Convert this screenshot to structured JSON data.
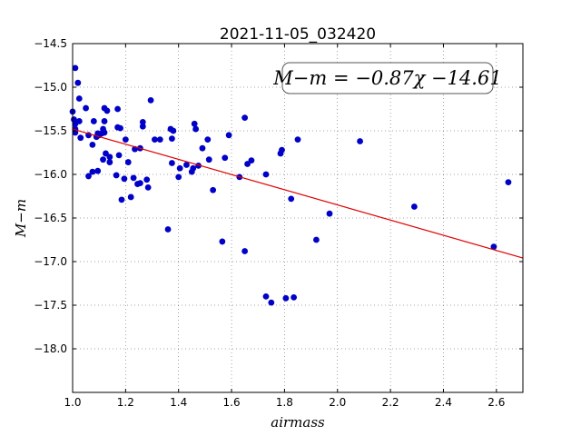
{
  "chart_data": {
    "type": "scatter",
    "title": "2021-11-05_032420",
    "xlabel": "airmass",
    "ylabel": "M−m",
    "xlim": [
      1.0,
      2.7
    ],
    "ylim": [
      -14.5,
      -18.5
    ],
    "y_inverted": true,
    "grid": true,
    "x_ticks": [
      1.0,
      1.2,
      1.4,
      1.6,
      1.8,
      2.0,
      2.2,
      2.4,
      2.6
    ],
    "x_tick_labels": [
      "1.0",
      "1.2",
      "1.4",
      "1.6",
      "1.8",
      "2.0",
      "2.2",
      "2.4",
      "2.6"
    ],
    "y_ticks": [
      -14.5,
      -15.0,
      -15.5,
      -16.0,
      -16.5,
      -17.0,
      -17.5,
      -18.0
    ],
    "y_tick_labels": [
      "−14.5",
      "−15.0",
      "−15.5",
      "−16.0",
      "−16.5",
      "−17.0",
      "−17.5",
      "−18.0"
    ],
    "annotation": "M−m = −0.87χ −14.61",
    "fit": {
      "slope": -0.87,
      "intercept": -14.61,
      "color": "#e00000"
    },
    "marker_color": "#0000c8",
    "points": [
      [
        1.0,
        -15.28
      ],
      [
        1.005,
        -15.37
      ],
      [
        1.01,
        -15.42
      ],
      [
        1.01,
        -15.48
      ],
      [
        1.01,
        -15.52
      ],
      [
        1.01,
        -14.78
      ],
      [
        1.02,
        -14.95
      ],
      [
        1.025,
        -15.13
      ],
      [
        1.025,
        -15.39
      ],
      [
        1.03,
        -15.58
      ],
      [
        1.05,
        -15.24
      ],
      [
        1.06,
        -15.55
      ],
      [
        1.06,
        -16.02
      ],
      [
        1.075,
        -15.66
      ],
      [
        1.075,
        -15.97
      ],
      [
        1.08,
        -15.39
      ],
      [
        1.09,
        -15.57
      ],
      [
        1.095,
        -15.53
      ],
      [
        1.095,
        -15.96
      ],
      [
        1.1,
        -15.55
      ],
      [
        1.11,
        -15.53
      ],
      [
        1.115,
        -15.83
      ],
      [
        1.115,
        -15.48
      ],
      [
        1.12,
        -15.24
      ],
      [
        1.12,
        -15.39
      ],
      [
        1.12,
        -15.52
      ],
      [
        1.125,
        -15.76
      ],
      [
        1.13,
        -15.27
      ],
      [
        1.14,
        -15.8
      ],
      [
        1.14,
        -15.86
      ],
      [
        1.165,
        -16.01
      ],
      [
        1.17,
        -15.25
      ],
      [
        1.17,
        -15.46
      ],
      [
        1.175,
        -15.78
      ],
      [
        1.18,
        -15.47
      ],
      [
        1.185,
        -16.29
      ],
      [
        1.195,
        -16.05
      ],
      [
        1.2,
        -15.6
      ],
      [
        1.21,
        -15.86
      ],
      [
        1.22,
        -16.26
      ],
      [
        1.23,
        -16.04
      ],
      [
        1.235,
        -15.71
      ],
      [
        1.245,
        -16.11
      ],
      [
        1.255,
        -16.1
      ],
      [
        1.255,
        -15.7
      ],
      [
        1.265,
        -15.4
      ],
      [
        1.265,
        -15.45
      ],
      [
        1.28,
        -16.06
      ],
      [
        1.285,
        -16.15
      ],
      [
        1.295,
        -15.15
      ],
      [
        1.31,
        -15.6
      ],
      [
        1.33,
        -15.6
      ],
      [
        1.36,
        -16.63
      ],
      [
        1.37,
        -15.48
      ],
      [
        1.375,
        -15.87
      ],
      [
        1.375,
        -15.59
      ],
      [
        1.38,
        -15.5
      ],
      [
        1.4,
        -16.03
      ],
      [
        1.405,
        -15.93
      ],
      [
        1.43,
        -15.89
      ],
      [
        1.45,
        -15.97
      ],
      [
        1.455,
        -15.93
      ],
      [
        1.46,
        -15.42
      ],
      [
        1.465,
        -15.48
      ],
      [
        1.475,
        -15.9
      ],
      [
        1.49,
        -15.7
      ],
      [
        1.51,
        -15.6
      ],
      [
        1.515,
        -15.83
      ],
      [
        1.53,
        -16.18
      ],
      [
        1.565,
        -16.77
      ],
      [
        1.575,
        -15.81
      ],
      [
        1.59,
        -15.55
      ],
      [
        1.63,
        -16.03
      ],
      [
        1.65,
        -15.35
      ],
      [
        1.65,
        -16.88
      ],
      [
        1.66,
        -15.88
      ],
      [
        1.675,
        -15.84
      ],
      [
        1.73,
        -17.4
      ],
      [
        1.73,
        -16.0
      ],
      [
        1.75,
        -17.47
      ],
      [
        1.785,
        -15.76
      ],
      [
        1.79,
        -15.72
      ],
      [
        1.805,
        -17.42
      ],
      [
        1.825,
        -16.28
      ],
      [
        1.835,
        -17.41
      ],
      [
        1.85,
        -15.6
      ],
      [
        1.92,
        -16.75
      ],
      [
        1.97,
        -16.45
      ],
      [
        2.085,
        -15.62
      ],
      [
        2.29,
        -16.37
      ],
      [
        2.59,
        -16.83
      ],
      [
        2.645,
        -16.09
      ]
    ]
  }
}
